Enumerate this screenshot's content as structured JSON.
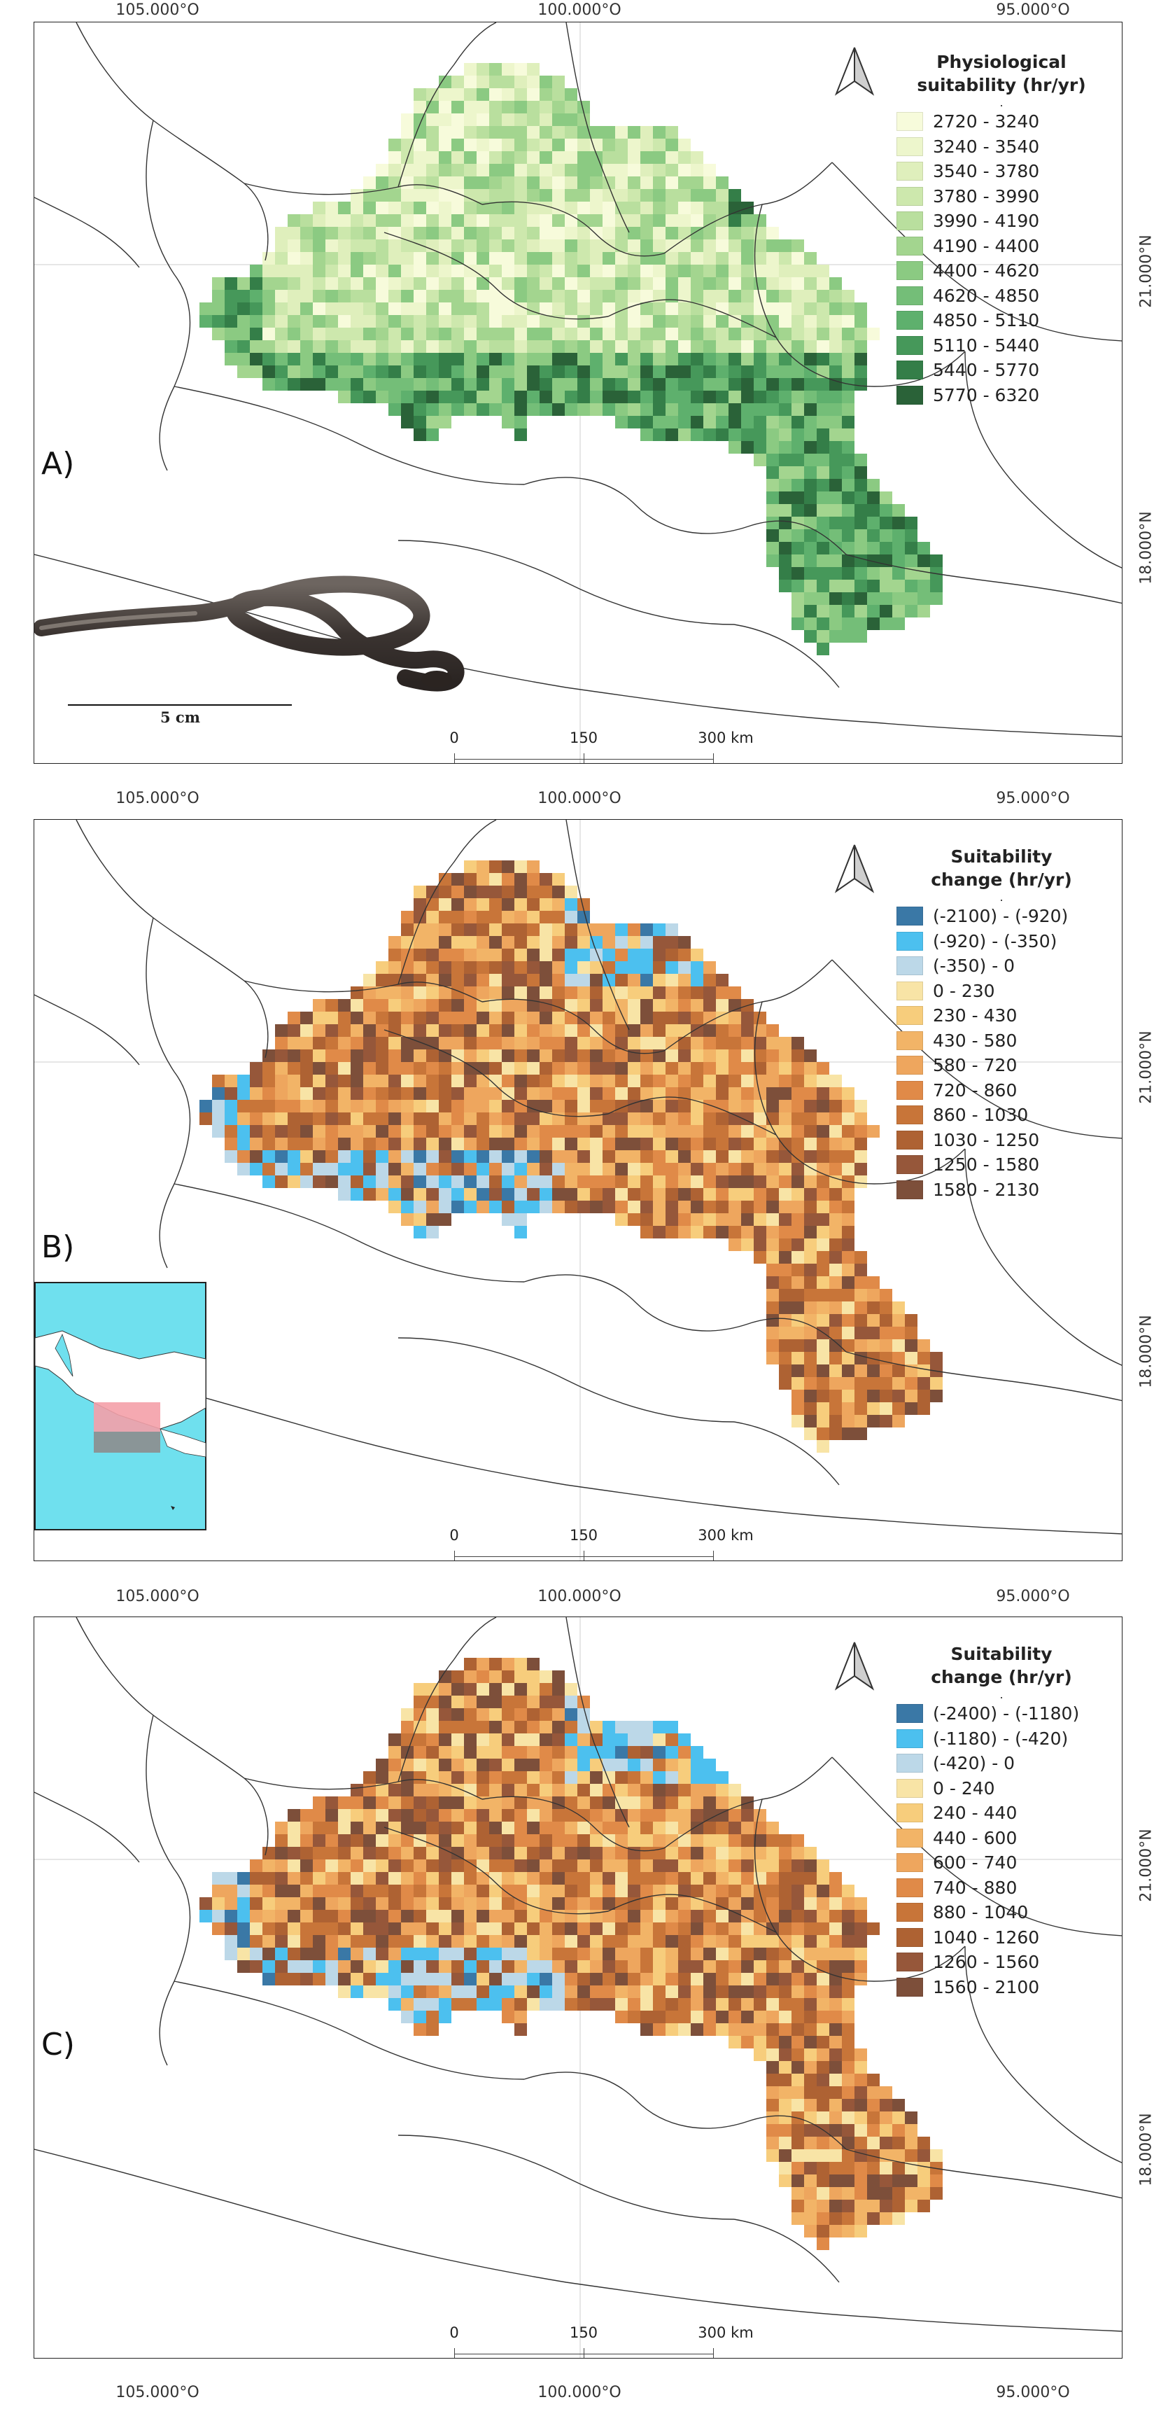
{
  "axis": {
    "lon_labels": [
      "105.000°O",
      "100.000°O",
      "95.000°O"
    ],
    "lat_labels": [
      "21.000°N",
      "18.000°N"
    ]
  },
  "panels": [
    {
      "label": "A)",
      "legend_title_1": "Physiological",
      "legend_title_2": "suitability (hr/yr)",
      "legend_dot": ".",
      "classes": [
        {
          "label": "2720 - 3240",
          "color": "#f7fbdb"
        },
        {
          "label": "3240 - 3540",
          "color": "#edf6cc"
        },
        {
          "label": "3540 - 3780",
          "color": "#dfefbc"
        },
        {
          "label": "3780 - 3990",
          "color": "#cde8ad"
        },
        {
          "label": "3990 - 4190",
          "color": "#b9df9e"
        },
        {
          "label": "4190 - 4400",
          "color": "#a3d58f"
        },
        {
          "label": "4400 - 4620",
          "color": "#8bca82"
        },
        {
          "label": "4620 - 4850",
          "color": "#74be78"
        },
        {
          "label": "4850 - 5110",
          "color": "#5eb06d"
        },
        {
          "label": "5110 - 5440",
          "color": "#46985a"
        },
        {
          "label": "5440 - 5770",
          "color": "#347e48"
        },
        {
          "label": "5770 - 6320",
          "color": "#2a6238"
        }
      ],
      "scale": {
        "l0": "0",
        "l1": "150",
        "l2": "300 km"
      },
      "snake_scale": "5 cm"
    },
    {
      "label": "B)",
      "legend_title_1": "Suitability",
      "legend_title_2": "change (hr/yr)",
      "legend_dot": ".",
      "classes": [
        {
          "label": "(-2100) - (-920)",
          "color": "#3a78a6"
        },
        {
          "label": "(-920) - (-350)",
          "color": "#4cc0ef"
        },
        {
          "label": "(-350) - 0",
          "color": "#bcd8e8"
        },
        {
          "label": "0 - 230",
          "color": "#f8e4a6"
        },
        {
          "label": "230 - 430",
          "color": "#f7cd7c"
        },
        {
          "label": "430 - 580",
          "color": "#f2b467"
        },
        {
          "label": "580 - 720",
          "color": "#eea65e"
        },
        {
          "label": "720 - 860",
          "color": "#e08a48"
        },
        {
          "label": "860 - 1030",
          "color": "#c87539"
        },
        {
          "label": "1030 - 1250",
          "color": "#ae6233"
        },
        {
          "label": "1250 - 1580",
          "color": "#96573a"
        },
        {
          "label": "1580 - 2130",
          "color": "#7d4f3a"
        }
      ],
      "scale": {
        "l0": "0",
        "l1": "150",
        "l2": "300 km"
      }
    },
    {
      "label": "C)",
      "legend_title_1": "Suitability",
      "legend_title_2": "change (hr/yr)",
      "legend_dot": ".",
      "classes": [
        {
          "label": "(-2400) - (-1180)",
          "color": "#3a78a6"
        },
        {
          "label": "(-1180) - (-420)",
          "color": "#4cc0ef"
        },
        {
          "label": "(-420) - 0",
          "color": "#bcd8e8"
        },
        {
          "label": "0 - 240",
          "color": "#f8e4a6"
        },
        {
          "label": "240 - 440",
          "color": "#f7cd7c"
        },
        {
          "label": "440 - 600",
          "color": "#f2b467"
        },
        {
          "label": "600 - 740",
          "color": "#eea65e"
        },
        {
          "label": "740 - 880",
          "color": "#e08a48"
        },
        {
          "label": "880 - 1040",
          "color": "#c87539"
        },
        {
          "label": "1040 - 1260",
          "color": "#ae6233"
        },
        {
          "label": "1260 - 1560",
          "color": "#96573a"
        },
        {
          "label": "1560 - 2100",
          "color": "#7d4f3a"
        }
      ],
      "scale": {
        "l0": "0",
        "l1": "150",
        "l2": "300 km"
      }
    }
  ]
}
